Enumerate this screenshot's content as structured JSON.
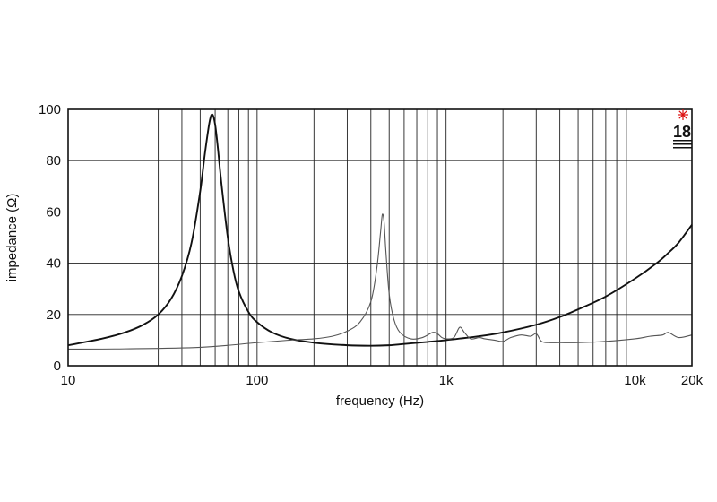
{
  "chart_data": {
    "type": "line",
    "title": "",
    "xlabel": "frequency (Hz)",
    "ylabel": "impedance (Ω)",
    "x_scale": "log",
    "xlim": [
      10,
      20000
    ],
    "ylim": [
      0,
      100
    ],
    "grid": true,
    "x_tick_values": [
      10,
      100,
      1000,
      10000,
      20000
    ],
    "x_tick_labels": [
      "10",
      "100",
      "1k",
      "10k",
      "20k"
    ],
    "y_tick_values": [
      0,
      20,
      40,
      60,
      80,
      100
    ],
    "y_tick_labels": [
      "0",
      "20",
      "40",
      "60",
      "80",
      "100"
    ],
    "colors": {
      "series_1": "#111111",
      "series_2": "#555555"
    },
    "series": [
      {
        "x": [
          10,
          15,
          20,
          25,
          30,
          35,
          40,
          45,
          50,
          53,
          56,
          58,
          60,
          62,
          65,
          70,
          75,
          80,
          90,
          100,
          120,
          150,
          200,
          300,
          400,
          500,
          600,
          800,
          1000,
          1500,
          2000,
          3000,
          4000,
          5000,
          7000,
          10000,
          13000,
          15000,
          17000,
          20000
        ],
        "y": [
          8,
          10.5,
          13,
          16,
          20,
          26,
          35,
          48,
          68,
          83,
          95,
          98,
          94,
          85,
          70,
          50,
          37,
          29,
          21,
          17,
          13,
          10.5,
          9,
          8,
          7.8,
          8,
          8.5,
          9.3,
          10,
          11.5,
          13,
          16,
          19,
          22,
          27,
          34,
          40,
          44,
          48,
          55
        ]
      },
      {
        "x": [
          10,
          20,
          50,
          100,
          150,
          200,
          250,
          300,
          350,
          400,
          430,
          450,
          460,
          470,
          480,
          500,
          530,
          570,
          650,
          750,
          850,
          900,
          950,
          1000,
          1100,
          1180,
          1250,
          1350,
          1500,
          1600,
          1800,
          2000,
          2200,
          2500,
          2800,
          3000,
          3200,
          3500,
          4000,
          5000,
          7000,
          10000,
          12000,
          14000,
          15000,
          17000,
          20000
        ],
        "y": [
          6.5,
          6.6,
          7.2,
          9,
          10,
          10.5,
          11.5,
          13.5,
          17,
          25,
          38,
          52,
          59,
          56,
          45,
          28,
          18,
          13,
          10.5,
          11,
          13,
          12.5,
          11,
          10.5,
          11,
          15,
          13,
          10.5,
          11,
          10.5,
          10,
          9.5,
          11,
          12,
          11.5,
          12.5,
          9.5,
          9,
          9,
          9,
          9.5,
          10.5,
          11.5,
          12,
          13,
          11,
          12
        ]
      }
    ]
  }
}
